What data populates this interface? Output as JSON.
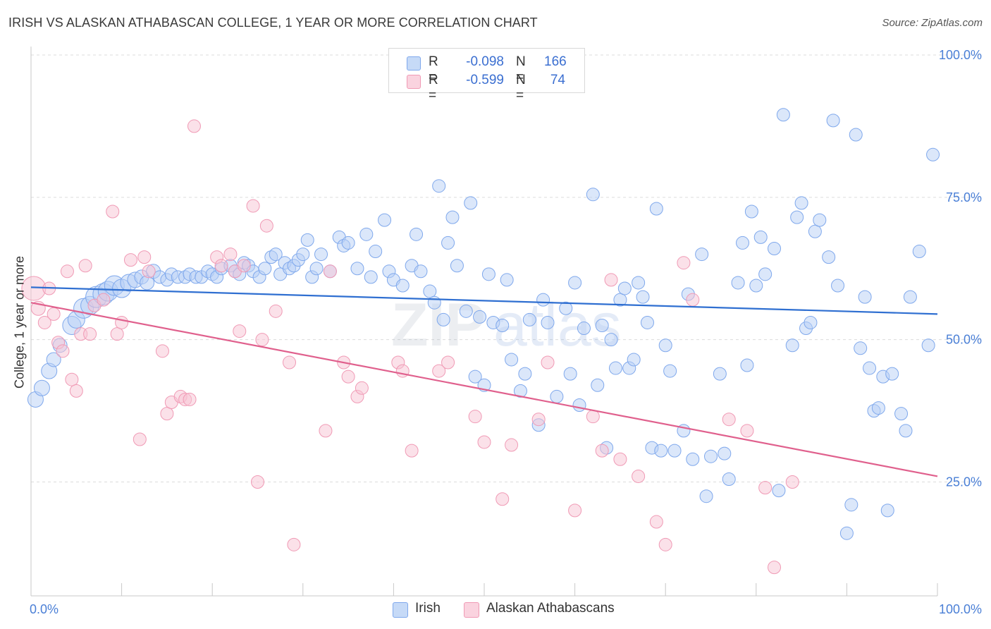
{
  "title": "IRISH VS ALASKAN ATHABASCAN COLLEGE, 1 YEAR OR MORE CORRELATION CHART",
  "source": "Source: ZipAtlas.com",
  "watermark": "ZIPatlas",
  "legend": {
    "rows": [
      {
        "r_label": "R =",
        "r_value": "-0.098",
        "n_label": "N =",
        "n_value": "166",
        "color": "#a9c6f3"
      },
      {
        "r_label": "R =",
        "r_value": "-0.599",
        "n_label": "N =",
        "n_value": "74",
        "color": "#f5b6c9"
      }
    ]
  },
  "chart_data": {
    "type": "scatter",
    "title": "IRISH VS ALASKAN ATHABASCAN COLLEGE, 1 YEAR OR MORE CORRELATION CHART",
    "xlabel": "",
    "ylabel": "College, 1 year or more",
    "xlim": [
      0,
      100
    ],
    "ylim": [
      5,
      100
    ],
    "x_tick_labels": [
      "0.0%",
      "100.0%"
    ],
    "y_tick_labels": [
      "25.0%",
      "50.0%",
      "75.0%",
      "100.0%"
    ],
    "y_ticks": [
      25,
      50,
      75,
      100
    ],
    "grid": true,
    "legend_position": "bottom",
    "series": [
      {
        "name": "Irish",
        "color": "#7fa8ec",
        "fill": "#b7d0f6",
        "trend": {
          "x": [
            0,
            100
          ],
          "y": [
            59.2,
            54.5
          ],
          "color": "#2f6fd1"
        },
        "points": [
          [
            0.5,
            39.5
          ],
          [
            1.2,
            41.5
          ],
          [
            2,
            44.5
          ],
          [
            2.5,
            46.5
          ],
          [
            3.2,
            49
          ],
          [
            4.5,
            52.5
          ],
          [
            5,
            53.5
          ],
          [
            5.8,
            55.5
          ],
          [
            6.5,
            56
          ],
          [
            7.2,
            57.5
          ],
          [
            8,
            58
          ],
          [
            8.5,
            58.5
          ],
          [
            9.2,
            59.5
          ],
          [
            10,
            59
          ],
          [
            10.8,
            60
          ],
          [
            11.5,
            60.5
          ],
          [
            12.2,
            61
          ],
          [
            12.8,
            60
          ],
          [
            13.5,
            62
          ],
          [
            14.2,
            61
          ],
          [
            15,
            60.5
          ],
          [
            15.5,
            61.5
          ],
          [
            16.2,
            61
          ],
          [
            17,
            61
          ],
          [
            17.5,
            61.5
          ],
          [
            18.2,
            61
          ],
          [
            18.8,
            61
          ],
          [
            19.5,
            62
          ],
          [
            20,
            61.5
          ],
          [
            20.5,
            61
          ],
          [
            21,
            62.5
          ],
          [
            22,
            63
          ],
          [
            22.5,
            62
          ],
          [
            23,
            61.5
          ],
          [
            23.5,
            63.5
          ],
          [
            24,
            63
          ],
          [
            24.5,
            62
          ],
          [
            25.2,
            61
          ],
          [
            25.8,
            62.5
          ],
          [
            26.5,
            64.5
          ],
          [
            27,
            65
          ],
          [
            27.5,
            61.5
          ],
          [
            28,
            63.5
          ],
          [
            28.5,
            62.5
          ],
          [
            29,
            63
          ],
          [
            29.5,
            64
          ],
          [
            30,
            65
          ],
          [
            30.5,
            67.5
          ],
          [
            31,
            61
          ],
          [
            31.5,
            62.5
          ],
          [
            32,
            65
          ],
          [
            33,
            62
          ],
          [
            34,
            68
          ],
          [
            34.5,
            66.5
          ],
          [
            35,
            67
          ],
          [
            36,
            62.5
          ],
          [
            37,
            68.5
          ],
          [
            37.5,
            61
          ],
          [
            38,
            65.5
          ],
          [
            39,
            71
          ],
          [
            39.5,
            62
          ],
          [
            40,
            60.5
          ],
          [
            41,
            59.5
          ],
          [
            42,
            63
          ],
          [
            42.5,
            68.5
          ],
          [
            43,
            62
          ],
          [
            44,
            58.5
          ],
          [
            44.5,
            56.5
          ],
          [
            45,
            77
          ],
          [
            45.5,
            53.5
          ],
          [
            46,
            67
          ],
          [
            46.5,
            71.5
          ],
          [
            47,
            63
          ],
          [
            48,
            55
          ],
          [
            48.5,
            74
          ],
          [
            49,
            43.5
          ],
          [
            49.5,
            54
          ],
          [
            50,
            42
          ],
          [
            50.5,
            61.5
          ],
          [
            51,
            53
          ],
          [
            52,
            52.5
          ],
          [
            52.5,
            60.5
          ],
          [
            53,
            46.5
          ],
          [
            54,
            41
          ],
          [
            54.5,
            44
          ],
          [
            55,
            53.5
          ],
          [
            56,
            35
          ],
          [
            56.5,
            57
          ],
          [
            57,
            53
          ],
          [
            58,
            40
          ],
          [
            59,
            55.5
          ],
          [
            59.5,
            44
          ],
          [
            60,
            60
          ],
          [
            60.5,
            38.5
          ],
          [
            61,
            52
          ],
          [
            62,
            75.5
          ],
          [
            62.5,
            42
          ],
          [
            63,
            52.5
          ],
          [
            63.5,
            31
          ],
          [
            64,
            50
          ],
          [
            64.5,
            45
          ],
          [
            65,
            57
          ],
          [
            65.5,
            59
          ],
          [
            66,
            45
          ],
          [
            66.5,
            46.5
          ],
          [
            67,
            60
          ],
          [
            67.5,
            57.5
          ],
          [
            68,
            53
          ],
          [
            68.5,
            31
          ],
          [
            69,
            73
          ],
          [
            69.5,
            30.5
          ],
          [
            70,
            49
          ],
          [
            70.5,
            44.5
          ],
          [
            71,
            30.5
          ],
          [
            72,
            34
          ],
          [
            72.5,
            58
          ],
          [
            73,
            29
          ],
          [
            74,
            65
          ],
          [
            74.5,
            22.5
          ],
          [
            75,
            29.5
          ],
          [
            76,
            44
          ],
          [
            76.5,
            30
          ],
          [
            77,
            25.5
          ],
          [
            78,
            60
          ],
          [
            78.5,
            67
          ],
          [
            79,
            45.5
          ],
          [
            79.5,
            72.5
          ],
          [
            80,
            59.5
          ],
          [
            80.5,
            68
          ],
          [
            81,
            61.5
          ],
          [
            82,
            66
          ],
          [
            82.5,
            23.5
          ],
          [
            83,
            89.5
          ],
          [
            84,
            49
          ],
          [
            84.5,
            71.5
          ],
          [
            85,
            74
          ],
          [
            85.5,
            52
          ],
          [
            86,
            53
          ],
          [
            86.5,
            69
          ],
          [
            87,
            71
          ],
          [
            88,
            64.5
          ],
          [
            88.5,
            88.5
          ],
          [
            89,
            59.5
          ],
          [
            90,
            16
          ],
          [
            90.5,
            21
          ],
          [
            91,
            86
          ],
          [
            91.5,
            48.5
          ],
          [
            92,
            57.5
          ],
          [
            93,
            37.5
          ],
          [
            94,
            43.5
          ],
          [
            94.5,
            20
          ],
          [
            95,
            44
          ],
          [
            96,
            37
          ],
          [
            97,
            57.5
          ],
          [
            98,
            65.5
          ],
          [
            99,
            49
          ],
          [
            99.5,
            82.5
          ],
          [
            96.5,
            34
          ],
          [
            93.5,
            38
          ],
          [
            92.5,
            45
          ]
        ],
        "sizes": [
          22,
          22,
          22,
          20,
          20,
          26,
          24,
          28,
          26,
          30,
          30,
          28,
          28,
          26,
          24,
          22,
          20,
          20,
          20,
          18,
          18,
          18,
          18,
          18,
          18,
          18,
          18,
          18,
          18,
          18
        ]
      },
      {
        "name": "Alaskan Athabascans",
        "color": "#f09ab5",
        "fill": "#f7c4d4",
        "trend": {
          "x": [
            0,
            100
          ],
          "y": [
            56.5,
            26
          ],
          "color": "#e0608d"
        },
        "points": [
          [
            0.3,
            59
          ],
          [
            0.8,
            55.5
          ],
          [
            1.5,
            53
          ],
          [
            2,
            59
          ],
          [
            2.5,
            54.5
          ],
          [
            3,
            49.5
          ],
          [
            3.5,
            48
          ],
          [
            4,
            62
          ],
          [
            4.5,
            43
          ],
          [
            5,
            41
          ],
          [
            5.5,
            51
          ],
          [
            6,
            63
          ],
          [
            6.5,
            51
          ],
          [
            7,
            56
          ],
          [
            8,
            57
          ],
          [
            9,
            72.5
          ],
          [
            9.5,
            51
          ],
          [
            10,
            53
          ],
          [
            11,
            64
          ],
          [
            12,
            32.5
          ],
          [
            12.5,
            64.5
          ],
          [
            13,
            62
          ],
          [
            14.5,
            48
          ],
          [
            15,
            37
          ],
          [
            15.5,
            39
          ],
          [
            16.5,
            40
          ],
          [
            17,
            39.5
          ],
          [
            17.5,
            39.5
          ],
          [
            18,
            87.5
          ],
          [
            20.5,
            64.5
          ],
          [
            21,
            63
          ],
          [
            22,
            65
          ],
          [
            22.5,
            62
          ],
          [
            23,
            51.5
          ],
          [
            23.5,
            63
          ],
          [
            24.5,
            73.5
          ],
          [
            25,
            25
          ],
          [
            25.5,
            50
          ],
          [
            26,
            70
          ],
          [
            27,
            55
          ],
          [
            28.5,
            46
          ],
          [
            29,
            14
          ],
          [
            32.5,
            34
          ],
          [
            33,
            62
          ],
          [
            34.5,
            46
          ],
          [
            35,
            43.5
          ],
          [
            36,
            40
          ],
          [
            36.5,
            41.5
          ],
          [
            40.5,
            46
          ],
          [
            41,
            44.5
          ],
          [
            42,
            30.5
          ],
          [
            45,
            44.5
          ],
          [
            46,
            46
          ],
          [
            49,
            36.5
          ],
          [
            50,
            32
          ],
          [
            52,
            22
          ],
          [
            53,
            31.5
          ],
          [
            56,
            36
          ],
          [
            57,
            46
          ],
          [
            60,
            20
          ],
          [
            62,
            36.5
          ],
          [
            63,
            30.5
          ],
          [
            64,
            60.5
          ],
          [
            65,
            29
          ],
          [
            67,
            26
          ],
          [
            69,
            18
          ],
          [
            70,
            14
          ],
          [
            72,
            63.5
          ],
          [
            73,
            57
          ],
          [
            77,
            36
          ],
          [
            79,
            34
          ],
          [
            81,
            24
          ],
          [
            82,
            10
          ],
          [
            84,
            25
          ]
        ],
        "sizes": [
          34,
          20,
          18,
          18,
          18,
          18,
          18,
          18,
          18,
          18
        ]
      }
    ]
  }
}
